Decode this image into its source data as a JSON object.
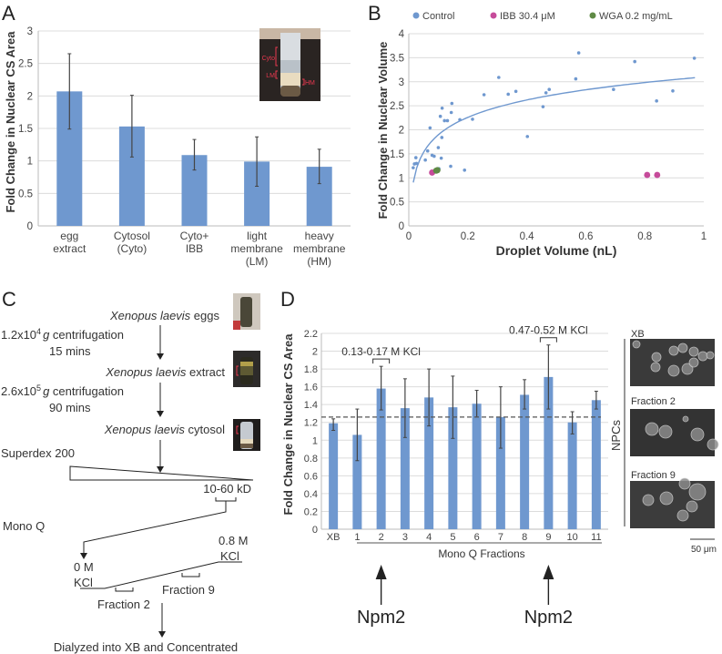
{
  "panels": {
    "A": "A",
    "B": "B",
    "C": "C",
    "D": "D"
  },
  "chart_data": [
    {
      "id": "A",
      "type": "bar",
      "title": "",
      "xlabel": "",
      "ylabel": "Fold Change in Nuclear CS Area",
      "ylim": [
        0,
        3
      ],
      "yticks": [
        0,
        0.5,
        1,
        1.5,
        2,
        2.5,
        3
      ],
      "ytick_labels": [
        "0",
        "0.5",
        "1",
        "1.5",
        "2",
        "2.5",
        "3"
      ],
      "grid": true,
      "bar_color": "#6f98cf",
      "categories": [
        [
          "egg",
          "extract"
        ],
        [
          "Cytosol",
          "(Cyto)"
        ],
        [
          "Cyto+",
          "IBB"
        ],
        [
          "light",
          "membrane",
          "(LM)"
        ],
        [
          "heavy",
          "membrane",
          "(HM)"
        ]
      ],
      "values": [
        2.07,
        1.53,
        1.09,
        0.99,
        0.91
      ],
      "error_low": [
        1.49,
        1.06,
        0.86,
        0.61,
        0.65
      ],
      "error_high": [
        2.65,
        2.01,
        1.33,
        1.37,
        1.18
      ],
      "inset_photo": {
        "description": "tube after centrifugation",
        "labels": [
          "Cyto",
          "LM",
          "HM"
        ],
        "label_color": "#e8384f"
      }
    },
    {
      "id": "B",
      "type": "scatter",
      "title": "",
      "xlabel": "Droplet Volume (nL)",
      "ylabel": "Fold Change in Nuclear Volume",
      "xlim": [
        0,
        1
      ],
      "ylim": [
        0,
        4
      ],
      "xticks": [
        0,
        0.2,
        0.4,
        0.6,
        0.8,
        1
      ],
      "xtick_labels": [
        "0",
        "0.2",
        "0.4",
        "0.6",
        "0.8",
        "1"
      ],
      "yticks": [
        0,
        0.5,
        1,
        1.5,
        2,
        2.5,
        3,
        3.5,
        4
      ],
      "ytick_labels": [
        "0",
        "0.5",
        "1",
        "1.5",
        "2",
        "2.5",
        "3",
        "3.5",
        "4"
      ],
      "grid": true,
      "legend_position": "top",
      "series": [
        {
          "name": "Control",
          "color": "#6f98cf",
          "points": [
            [
              0.015,
              1.21
            ],
            [
              0.019,
              1.29
            ],
            [
              0.024,
              1.42
            ],
            [
              0.026,
              1.3
            ],
            [
              0.056,
              1.37
            ],
            [
              0.064,
              1.56
            ],
            [
              0.072,
              2.04
            ],
            [
              0.079,
              1.47
            ],
            [
              0.086,
              1.45
            ],
            [
              0.1,
              1.63
            ],
            [
              0.102,
              1.19
            ],
            [
              0.107,
              2.28
            ],
            [
              0.11,
              1.41
            ],
            [
              0.112,
              1.84
            ],
            [
              0.113,
              2.45
            ],
            [
              0.121,
              2.19
            ],
            [
              0.131,
              2.19
            ],
            [
              0.142,
              1.24
            ],
            [
              0.144,
              2.36
            ],
            [
              0.146,
              2.55
            ],
            [
              0.173,
              2.21
            ],
            [
              0.189,
              1.16
            ],
            [
              0.216,
              2.22
            ],
            [
              0.255,
              2.73
            ],
            [
              0.305,
              3.09
            ],
            [
              0.337,
              2.74
            ],
            [
              0.363,
              2.8
            ],
            [
              0.402,
              1.86
            ],
            [
              0.455,
              2.48
            ],
            [
              0.465,
              2.77
            ],
            [
              0.476,
              2.84
            ],
            [
              0.566,
              3.06
            ],
            [
              0.576,
              3.6
            ],
            [
              0.694,
              2.84
            ],
            [
              0.766,
              3.42
            ],
            [
              0.84,
              2.6
            ],
            [
              0.895,
              2.81
            ],
            [
              0.968,
              3.49
            ]
          ],
          "trendline": {
            "type": "logarithmic",
            "a": 3.1,
            "b": 0.523,
            "x_range": [
              0.015,
              0.97
            ]
          }
        },
        {
          "name": "IBB 30.4 μM",
          "color": "#c64b9a",
          "points": [
            [
              0.079,
              1.11
            ],
            [
              0.808,
              1.06
            ],
            [
              0.842,
              1.06
            ]
          ]
        },
        {
          "name": "WGA 0.2 mg/mL",
          "color": "#5f8a45",
          "points": [
            [
              0.093,
              1.15
            ],
            [
              0.097,
              1.16
            ]
          ]
        }
      ]
    },
    {
      "id": "D",
      "type": "bar",
      "title": "",
      "xlabel": "Mono Q Fractions",
      "ylabel": "Fold Change in Nuclear CS Area",
      "ylim": [
        0,
        2.2
      ],
      "yticks": [
        0,
        0.2,
        0.4,
        0.6,
        0.8,
        1,
        1.2,
        1.4,
        1.6,
        1.8,
        2,
        2.2
      ],
      "ytick_labels": [
        "0",
        "0.2",
        "0.4",
        "0.6",
        "0.8",
        "1",
        "1.2",
        "1.4",
        "1.6",
        "1.8",
        "2",
        "2.2"
      ],
      "grid": true,
      "bar_color": "#6f98cf",
      "categories": [
        "XB",
        "1",
        "2",
        "3",
        "4",
        "5",
        "6",
        "7",
        "8",
        "9",
        "10",
        "11"
      ],
      "values": [
        1.19,
        1.06,
        1.58,
        1.36,
        1.48,
        1.37,
        1.41,
        1.26,
        1.51,
        1.71,
        1.2,
        1.45
      ],
      "error_low": [
        1.11,
        0.77,
        1.34,
        1.03,
        1.16,
        1.02,
        1.26,
        0.91,
        1.35,
        1.35,
        1.07,
        1.35
      ],
      "error_high": [
        1.24,
        1.35,
        1.83,
        1.69,
        1.8,
        1.72,
        1.56,
        1.6,
        1.68,
        2.07,
        1.32,
        1.55
      ],
      "reference_line": 1.26,
      "annotations": [
        {
          "text": "0.13-0.17 M KCl",
          "category": "2"
        },
        {
          "text": "0.47-0.52 M KCl",
          "category": "9"
        }
      ],
      "arrows": [
        {
          "text": "Npm2",
          "category": "2"
        },
        {
          "text": "Npm2",
          "category": "9"
        }
      ]
    }
  ],
  "legend_B": {
    "items": [
      {
        "label": "Control",
        "color": "#6f98cf"
      },
      {
        "label": "IBB 30.4 μM",
        "color": "#c64b9a"
      },
      {
        "label": "WGA 0.2 mg/mL",
        "color": "#5f8a45"
      }
    ]
  },
  "flow_C": {
    "species": "Xenopus laevis",
    "step1": " eggs",
    "spin1_a": "1.2x10",
    "spin1_exp": "4",
    "spin1_g": "g",
    "spin1_b": " centrifugation",
    "spin1_time": "15 mins",
    "step2": " extract",
    "spin2_a": "2.6x10",
    "spin2_exp": "5",
    "spin2_g": "g",
    "spin2_b": " centrifugation",
    "spin2_time": "90 mins",
    "step3": " cytosol",
    "superdex": "Superdex 200",
    "kd_range": "10-60 kD",
    "monoq": "Mono Q",
    "high_salt_1": "0.8 M",
    "high_salt_2": "KCl",
    "low_salt_1": "0 M",
    "low_salt_2": "KCl",
    "fraction9": "Fraction 9",
    "fraction2": "Fraction 2",
    "final": "Dialyzed into XB and Concentrated"
  },
  "npc_images": {
    "group_label": "NPCs",
    "labels": [
      "XB",
      "Fraction 2",
      "Fraction 9"
    ],
    "scale_bar": "50 μm"
  }
}
